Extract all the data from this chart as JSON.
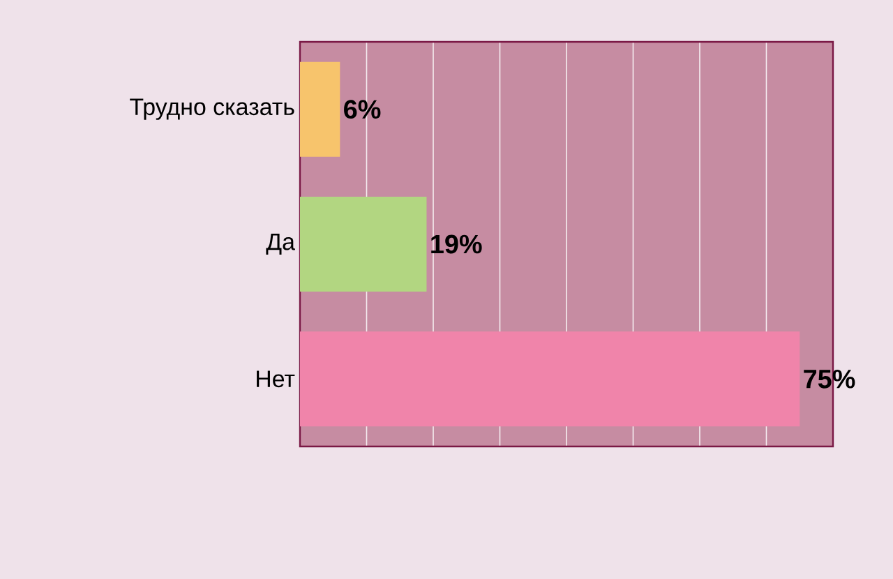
{
  "chart_data": {
    "type": "bar",
    "orientation": "horizontal",
    "categories": [
      "Трудно сказать",
      "Да",
      "Нет"
    ],
    "values": [
      6,
      19,
      75
    ],
    "colors": [
      "#f7c46c",
      "#b2d681",
      "#f084aa"
    ],
    "value_labels": [
      "6%",
      "19%",
      "75%"
    ],
    "xlim": [
      0,
      80
    ],
    "xticks": [
      0,
      10,
      20,
      30,
      40,
      50,
      60,
      70,
      80
    ],
    "grid": "x",
    "tick_labels": "y"
  }
}
